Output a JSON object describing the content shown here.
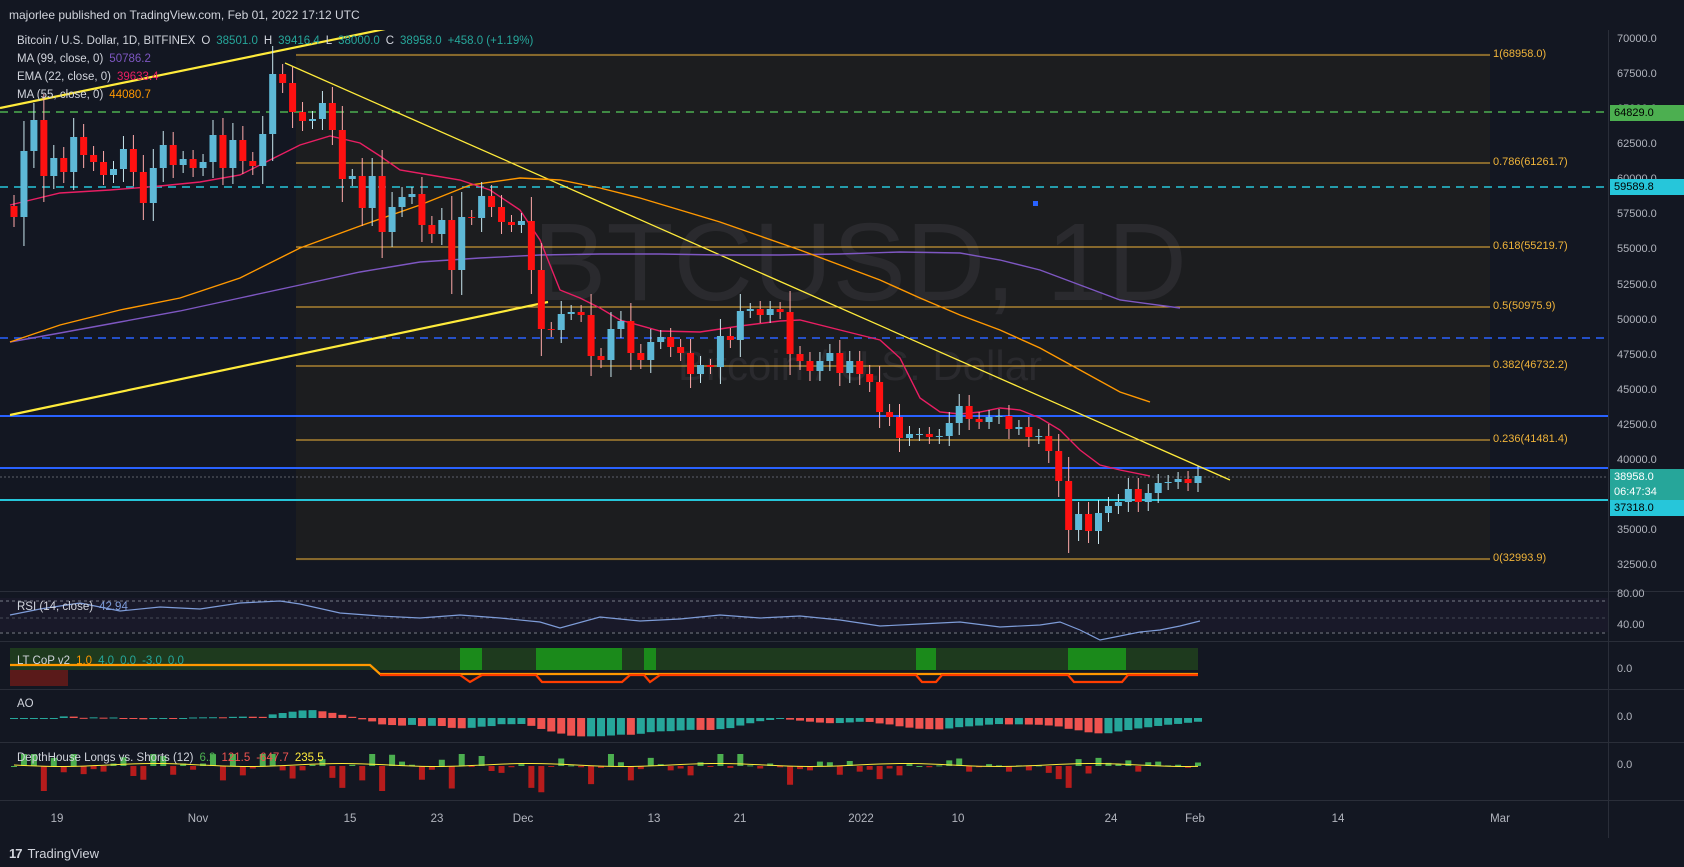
{
  "header": {
    "published": "majorlee published on TradingView.com, Feb 01, 2022 17:12 UTC"
  },
  "footer": {
    "brand": "TradingView"
  },
  "symbol": {
    "title": "Bitcoin / U.S. Dollar, 1D, BITFINEX",
    "o_key": "O",
    "o": "38501.0",
    "h_key": "H",
    "h": "39416.4",
    "l_key": "L",
    "l": "38000.0",
    "c_key": "C",
    "c": "38958.0",
    "change": "+458.0 (+1.19%)"
  },
  "indicators": [
    {
      "label": "MA (99, close, 0)",
      "value": "50786.2",
      "color": "#7e57c2"
    },
    {
      "label": "EMA (22, close, 0)",
      "value": "39633.4",
      "color": "#e91e63"
    },
    {
      "label": "MA (55, close, 0)",
      "value": "44080.7",
      "color": "#ff9800"
    }
  ],
  "watermark": {
    "line1": "BTCUSD, 1D",
    "line2": "Bitcoin / U.S. Dollar"
  },
  "price_axis": [
    "70000.0",
    "67500.0",
    "65000.0",
    "62500.0",
    "60000.0",
    "57500.0",
    "55000.0",
    "52500.0",
    "50000.0",
    "47500.0",
    "45000.0",
    "42500.0",
    "40000.0",
    "37500.0",
    "35000.0",
    "32500.0"
  ],
  "price_tags": {
    "green": "64829.0",
    "cyan_top": "59589.8",
    "last": "38958.0",
    "countdown": "06:47:34",
    "cyan_bottom": "37318.0"
  },
  "fib_levels": [
    {
      "label": "1(68958.0)",
      "price": 68958.0
    },
    {
      "label": "0.786(61261.7)",
      "price": 61261.7
    },
    {
      "label": "0.618(55219.7)",
      "price": 55219.7
    },
    {
      "label": "0.5(50975.9)",
      "price": 50975.9
    },
    {
      "label": "0.382(46732.2)",
      "price": 46732.2
    },
    {
      "label": "0.236(41481.4)",
      "price": 41481.4
    },
    {
      "label": "0(32993.9)",
      "price": 32993.9
    }
  ],
  "x_axis": [
    "19",
    "Nov",
    "15",
    "23",
    "Dec",
    "13",
    "21",
    "2022",
    "10",
    "24",
    "Feb",
    "14",
    "Mar"
  ],
  "panes": {
    "rsi": {
      "label": "RSI (14, close)",
      "value": "42.94",
      "axis": [
        "80.00",
        "40.00"
      ]
    },
    "ltcop": {
      "label": "LT CoP v2",
      "values": [
        "1.0",
        "4.0",
        "0.0",
        "-3.0",
        "0.0"
      ],
      "axis": "0.0"
    },
    "ao": {
      "label": "AO",
      "axis": "0.0"
    },
    "depth": {
      "label": "DepthHouse Longs vs. Shorts (12)",
      "values": [
        "6.2",
        "121.5",
        "-647.7",
        "235.5"
      ],
      "axis": "0.0"
    }
  },
  "chart_data": {
    "type": "candlestick",
    "title": "Bitcoin / U.S. Dollar, 1D, BITFINEX",
    "x_range": [
      "2021-10-15",
      "2022-03-01"
    ],
    "ylim": [
      31500,
      71000
    ],
    "closes": [
      57400,
      62100,
      64300,
      60300,
      61600,
      60600,
      63100,
      61800,
      61300,
      60400,
      60800,
      62200,
      60600,
      58400,
      60900,
      62500,
      61100,
      61500,
      60900,
      61300,
      63200,
      60900,
      62900,
      61400,
      61000,
      63300,
      67600,
      66900,
      64900,
      64200,
      64400,
      65500,
      63600,
      60100,
      60300,
      58000,
      60300,
      56300,
      58100,
      58800,
      59000,
      56800,
      56200,
      57200,
      53600,
      57400,
      57300,
      58900,
      58100,
      57000,
      56800,
      57100,
      53600,
      49400,
      49300,
      50500,
      50600,
      50400,
      47500,
      47200,
      49400,
      50000,
      47700,
      47200,
      48500,
      48800,
      48100,
      47700,
      46200,
      46800,
      46700,
      48900,
      48600,
      50700,
      50800,
      50400,
      50800,
      50600,
      47600,
      47100,
      46400,
      47100,
      47700,
      46300,
      47100,
      46200,
      45600,
      43500,
      43100,
      41600,
      41900,
      41900,
      41700,
      41800,
      42700,
      43900,
      43000,
      42800,
      43100,
      43200,
      42300,
      42400,
      41700,
      41800,
      40700,
      38600,
      35100,
      36200,
      35000,
      36300,
      36800,
      37100,
      38000,
      37100,
      37700,
      38400,
      38500,
      38700,
      38400,
      38958
    ]
  }
}
